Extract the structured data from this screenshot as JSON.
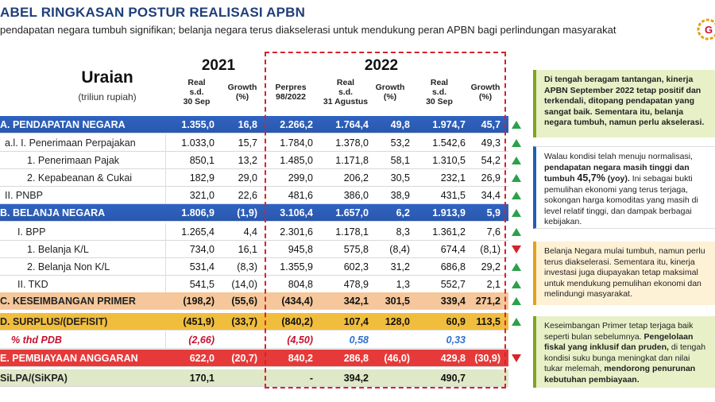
{
  "header": {
    "title": "ABEL RINGKASAN POSTUR REALISASI APBN",
    "subtitle": "pendapatan negara tumbuh signifikan; belanja negara terus diakselerasi untuk mendukung peran APBN bagi perlindungan masyarakat",
    "logo_icon": "gear-emblem-icon",
    "logo_text": "G"
  },
  "table": {
    "uraian_title": "Uraian",
    "uraian_unit": "(triliun rupiah)",
    "year_2021": "2021",
    "year_2022": "2022",
    "columns": [
      "Real\ns.d.\n30 Sep",
      "Growth\n(%)",
      "Perpres\n98/2022",
      "Real\ns.d.\n31 Agustus",
      "Growth\n(%)",
      "Real\ns.d.\n30 Sep",
      "Growth\n(%)"
    ],
    "rows": [
      {
        "label": "A.  PENDAPATAN NEGARA",
        "values": [
          "1.355,0",
          "16,8",
          "2.266,2",
          "1.764,4",
          "49,8",
          "1.974,7",
          "45,7"
        ]
      },
      {
        "label": "a.l.  I.   Penerimaan Perpajakan",
        "values": [
          "1.033,0",
          "15,7",
          "1.784,0",
          "1.378,0",
          "53,2",
          "1.542,6",
          "49,3"
        ]
      },
      {
        "label": "1.  Penerimaan Pajak",
        "values": [
          "850,1",
          "13,2",
          "1.485,0",
          "1.171,8",
          "58,1",
          "1.310,5",
          "54,2"
        ]
      },
      {
        "label": "2.  Kepabeanan & Cukai",
        "values": [
          "182,9",
          "29,0",
          "299,0",
          "206,2",
          "30,5",
          "232,1",
          "26,9"
        ]
      },
      {
        "label": "II.  PNBP",
        "values": [
          "321,0",
          "22,6",
          "481,6",
          "386,0",
          "38,9",
          "431,5",
          "34,4"
        ]
      },
      {
        "label": "B.  BELANJA NEGARA",
        "values": [
          "1.806,9",
          "(1,9)",
          "3.106,4",
          "1.657,0",
          "6,2",
          "1.913,9",
          "5,9"
        ]
      },
      {
        "label": "I.   BPP",
        "values": [
          "1.265,4",
          "4,4",
          "2.301,6",
          "1.178,1",
          "8,3",
          "1.361,2",
          "7,6"
        ]
      },
      {
        "label": "1.  Belanja K/L",
        "values": [
          "734,0",
          "16,1",
          "945,8",
          "575,8",
          "(8,4)",
          "674,4",
          "(8,1)"
        ]
      },
      {
        "label": "2.  Belanja Non K/L",
        "values": [
          "531,4",
          "(8,3)",
          "1.355,9",
          "602,3",
          "31,2",
          "686,8",
          "29,2"
        ]
      },
      {
        "label": "II.  TKD",
        "values": [
          "541,5",
          "(14,0)",
          "804,8",
          "478,9",
          "1,3",
          "552,7",
          "2,1"
        ]
      },
      {
        "label": "C.  KESEIMBANGAN PRIMER",
        "values": [
          "(198,2)",
          "(55,6)",
          "(434,4)",
          "342,1",
          "301,5",
          "339,4",
          "271,2"
        ]
      },
      {
        "label": "D.  SURPLUS/(DEFISIT)",
        "values": [
          "(451,9)",
          "(33,7)",
          "(840,2)",
          "107,4",
          "128,0",
          "60,9",
          "113,5"
        ]
      },
      {
        "label": "% thd PDB",
        "values": [
          "(2,66)",
          "",
          "(4,50)",
          "0,58",
          "",
          "0,33",
          ""
        ]
      },
      {
        "label": "E.  PEMBIAYAAN ANGGARAN",
        "values": [
          "622,0",
          "(20,7)",
          "840,2",
          "286,8",
          "(46,0)",
          "429,8",
          "(30,9)"
        ]
      },
      {
        "label": "SiLPA/(SiKPA)",
        "values": [
          "170,1",
          "",
          "-",
          "394,2",
          "",
          "490,7",
          ""
        ]
      }
    ],
    "arrows": [
      "up",
      "up",
      "up",
      "up",
      "up",
      "up",
      "up",
      "down",
      "up",
      "up",
      "up",
      "up",
      "",
      "down",
      ""
    ],
    "arrow_colors": {
      "up": "#2aa14a",
      "down": "#d4242a"
    }
  },
  "notes": {
    "n1": "Di tengah beragam tantangan, kinerja APBN September 2022 tetap positif dan terkendali, ditopang pendapatan yang sangat baik. Sementara itu, belanja negara tumbuh, namun perlu akselerasi.",
    "n2a": "Walau kondisi telah menuju normalisasi, ",
    "n2b": "pendapatan negara masih tinggi dan tumbuh ",
    "n2c": "45,7%",
    "n2d": " (yoy).",
    "n2e": " Ini sebagai bukti pemulihan ekonomi yang terus terjaga, sokongan harga komoditas yang masih di level relatif tinggi, dan dampak berbagai kebijakan.",
    "n3": "Belanja Negara mulai tumbuh, namun perlu terus diakselerasi. Sementara itu, kinerja investasi juga diupayakan tetap maksimal untuk mendukung pemulihan ekonomi dan melindungi masyarakat.",
    "n4a": "Keseimbangan Primer tetap terjaga baik seperti bulan sebelumnya. ",
    "n4b": "Pengelolaan fiskal yang inklusif dan pruden,",
    "n4c": " di tengah kondisi suku bunga meningkat dan nilai tukar melemah, ",
    "n4d": "mendorong penurunan kebutuhan pembiayaan."
  }
}
